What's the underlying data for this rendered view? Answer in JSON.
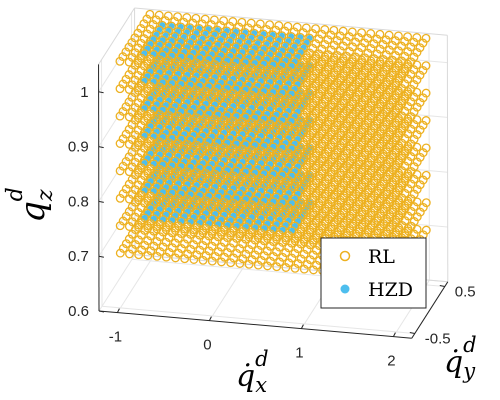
{
  "chart_data": {
    "type": "scatter",
    "title": "",
    "projection": "3d",
    "xlabel": "q̇",
    "xlabel_sub": "x",
    "xlabel_sup": "d",
    "ylabel": "q̇",
    "ylabel_sub": "y",
    "ylabel_sup": "d",
    "zlabel": "q",
    "zlabel_sub": "z",
    "zlabel_sup": "d",
    "xlim": [
      -1.2,
      2.2
    ],
    "ylim": [
      -0.6,
      0.6
    ],
    "zlim": [
      0.6,
      1.05
    ],
    "x_ticks": [
      "-1",
      "0",
      "1",
      "2"
    ],
    "y_ticks": [
      "-0.5",
      "0.5"
    ],
    "z_ticks": [
      "0.6",
      "0.7",
      "0.8",
      "0.9",
      "1"
    ],
    "grid": true,
    "legend_position": "bottom-right",
    "series": [
      {
        "name": "RL",
        "marker": "open-circle",
        "color": "#EDB120",
        "grid": {
          "x_range": [
            -1.0,
            2.0
          ],
          "x_step": 0.1,
          "y_range": [
            -0.5,
            0.5
          ],
          "y_step": 0.1,
          "z_values": [
            0.7,
            0.75,
            0.8,
            0.85,
            0.9,
            0.95,
            1.0,
            1.05
          ]
        }
      },
      {
        "name": "HZD",
        "marker": "filled-circle",
        "color": "#4DBEEE",
        "grid": {
          "x_range": [
            -0.8,
            0.8
          ],
          "x_step": 0.1,
          "y_range": [
            -0.3,
            0.3
          ],
          "y_step": 0.1,
          "z_values": [
            0.75,
            0.8,
            0.85,
            0.9,
            0.95,
            1.0,
            1.05
          ]
        }
      }
    ]
  }
}
